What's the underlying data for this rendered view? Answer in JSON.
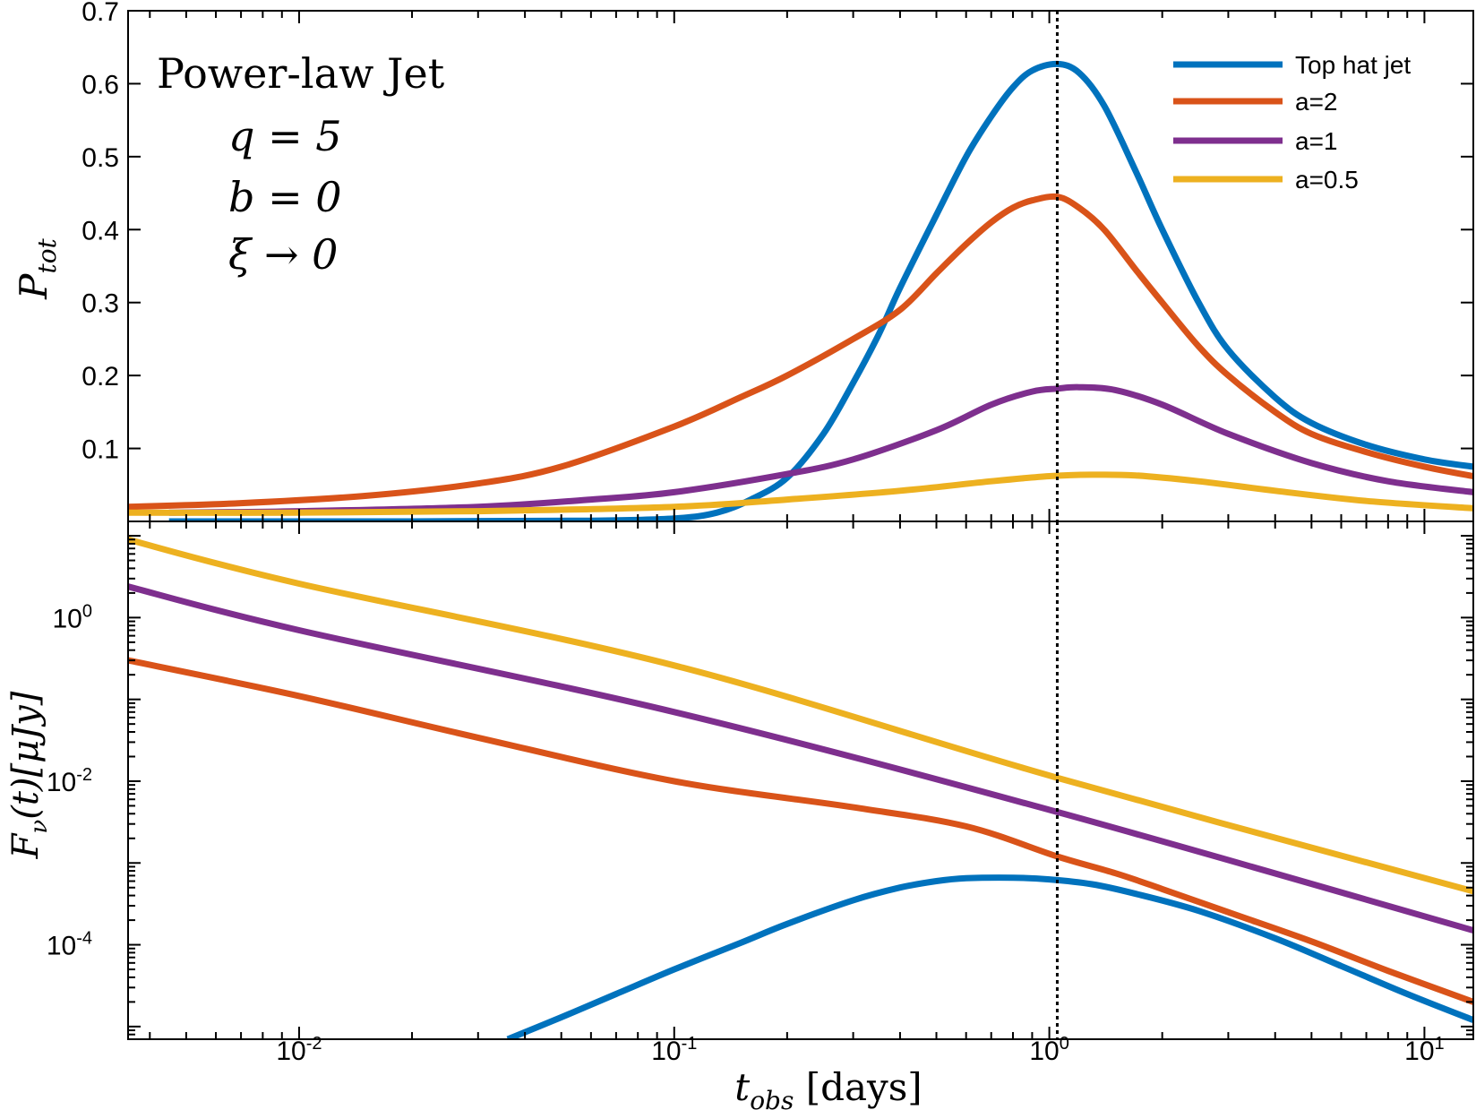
{
  "chart_data": [
    {
      "type": "line",
      "panel": "top",
      "title": "",
      "xlabel": "",
      "ylabel": "P_tot",
      "xscale": "log",
      "yscale": "linear",
      "xlim": [
        0.0035,
        13.5
      ],
      "ylim": [
        0.0,
        0.7
      ],
      "yticks": [
        0.1,
        0.2,
        0.3,
        0.4,
        0.5,
        0.6,
        0.7
      ],
      "ytick_labels": [
        "0.1",
        "0.2",
        "0.3",
        "0.4",
        "0.5",
        "0.6",
        "0.7"
      ],
      "grid": false,
      "legend_position": "top-right",
      "annotation": {
        "title": "Power-law Jet",
        "lines": [
          "q = 5",
          "b = 0",
          "ξ → 0"
        ]
      },
      "vertical_line": {
        "x": 1.05,
        "style": "dotted"
      },
      "series": [
        {
          "name": "Top hat jet",
          "color": "#0072BD",
          "x": [
            0.0045,
            0.02,
            0.06,
            0.1,
            0.13,
            0.16,
            0.2,
            0.25,
            0.3,
            0.35,
            0.4,
            0.5,
            0.6,
            0.7,
            0.8,
            0.9,
            1.05,
            1.2,
            1.4,
            1.7,
            2.0,
            2.5,
            3.0,
            4.0,
            5.0,
            7.0,
            10.0,
            13.5
          ],
          "y": [
            0.0,
            0.0,
            0.001,
            0.004,
            0.012,
            0.03,
            0.06,
            0.12,
            0.19,
            0.255,
            0.32,
            0.42,
            0.5,
            0.555,
            0.595,
            0.618,
            0.627,
            0.615,
            0.57,
            0.48,
            0.4,
            0.3,
            0.235,
            0.17,
            0.135,
            0.105,
            0.085,
            0.075
          ]
        },
        {
          "name": "a=2",
          "color": "#D95319",
          "x": [
            0.0035,
            0.007,
            0.015,
            0.03,
            0.05,
            0.1,
            0.15,
            0.2,
            0.3,
            0.4,
            0.5,
            0.6,
            0.7,
            0.8,
            0.9,
            1.05,
            1.2,
            1.4,
            1.7,
            2.0,
            2.5,
            3.0,
            4.0,
            5.0,
            7.0,
            10.0,
            13.5
          ],
          "y": [
            0.02,
            0.025,
            0.035,
            0.052,
            0.075,
            0.13,
            0.17,
            0.2,
            0.25,
            0.29,
            0.34,
            0.38,
            0.41,
            0.43,
            0.44,
            0.445,
            0.43,
            0.4,
            0.345,
            0.3,
            0.24,
            0.2,
            0.15,
            0.12,
            0.095,
            0.075,
            0.062
          ]
        },
        {
          "name": "a=1",
          "color": "#7E2F8E",
          "x": [
            0.0045,
            0.01,
            0.03,
            0.06,
            0.1,
            0.2,
            0.3,
            0.5,
            0.7,
            0.9,
            1.05,
            1.2,
            1.5,
            2.0,
            3.0,
            5.0,
            8.0,
            13.5
          ],
          "y": [
            0.012,
            0.014,
            0.02,
            0.03,
            0.04,
            0.065,
            0.085,
            0.125,
            0.16,
            0.178,
            0.182,
            0.184,
            0.18,
            0.16,
            0.12,
            0.08,
            0.055,
            0.04
          ]
        },
        {
          "name": "a=0.5",
          "color": "#EDB120",
          "x": [
            0.0035,
            0.01,
            0.03,
            0.1,
            0.2,
            0.4,
            0.7,
            1.0,
            1.3,
            1.7,
            2.5,
            4.0,
            7.0,
            13.5
          ],
          "y": [
            0.012,
            0.012,
            0.014,
            0.02,
            0.03,
            0.042,
            0.055,
            0.062,
            0.064,
            0.063,
            0.055,
            0.042,
            0.028,
            0.018
          ]
        }
      ]
    },
    {
      "type": "line",
      "panel": "bottom",
      "title": "",
      "xlabel": "t_obs [days]",
      "ylabel": "F_ν(t)[μJy]",
      "xscale": "log",
      "yscale": "log",
      "xlim": [
        0.0035,
        13.5
      ],
      "ylim": [
        7e-06,
        15
      ],
      "xticks": [
        0.01,
        0.1,
        1,
        10
      ],
      "xtick_labels": [
        {
          "base": "10",
          "exp": "-2"
        },
        {
          "base": "10",
          "exp": "-1"
        },
        {
          "base": "10",
          "exp": "0"
        },
        {
          "base": "10",
          "exp": "1"
        }
      ],
      "yticks": [
        1,
        0.01,
        0.0001
      ],
      "ytick_labels": [
        {
          "base": "10",
          "exp": "0"
        },
        {
          "base": "10",
          "exp": "-2"
        },
        {
          "base": "10",
          "exp": "-4"
        }
      ],
      "grid": false,
      "vertical_line": {
        "x": 1.05,
        "style": "dotted"
      },
      "series": [
        {
          "name": "Top hat jet",
          "color": "#0072BD",
          "x": [
            0.036,
            0.05,
            0.07,
            0.1,
            0.15,
            0.2,
            0.3,
            0.4,
            0.5,
            0.6,
            0.8,
            1.0,
            1.3,
            1.7,
            2.5,
            4.0,
            6.0,
            9.0,
            13.5
          ],
          "y": [
            7e-06,
            1.3e-05,
            2.5e-05,
            5e-05,
            0.000105,
            0.00018,
            0.00035,
            0.0005,
            0.0006,
            0.00065,
            0.00066,
            0.00063,
            0.00055,
            0.00042,
            0.00026,
            0.00012,
            5.5e-05,
            2.5e-05,
            1.2e-05
          ]
        },
        {
          "name": "a=2",
          "color": "#D95319",
          "x": [
            0.0035,
            0.01,
            0.03,
            0.1,
            0.3,
            0.6,
            1.05,
            1.5,
            2.0,
            3.0,
            5.0,
            8.0,
            13.5
          ],
          "y": [
            0.3,
            0.11,
            0.034,
            0.01,
            0.0048,
            0.0028,
            0.0012,
            0.00075,
            0.00048,
            0.00025,
            0.00011,
            4.8e-05,
            2e-05
          ]
        },
        {
          "name": "a=1",
          "color": "#7E2F8E",
          "x": [
            0.0035,
            0.01,
            0.1,
            1.05,
            13.5
          ],
          "y": [
            2.4,
            0.7,
            0.07,
            0.0042,
            0.00015
          ]
        },
        {
          "name": "a=0.5",
          "color": "#EDB120",
          "x": [
            0.0035,
            0.01,
            0.1,
            1.05,
            13.5
          ],
          "y": [
            9.0,
            2.6,
            0.26,
            0.011,
            0.00045
          ]
        }
      ]
    }
  ]
}
